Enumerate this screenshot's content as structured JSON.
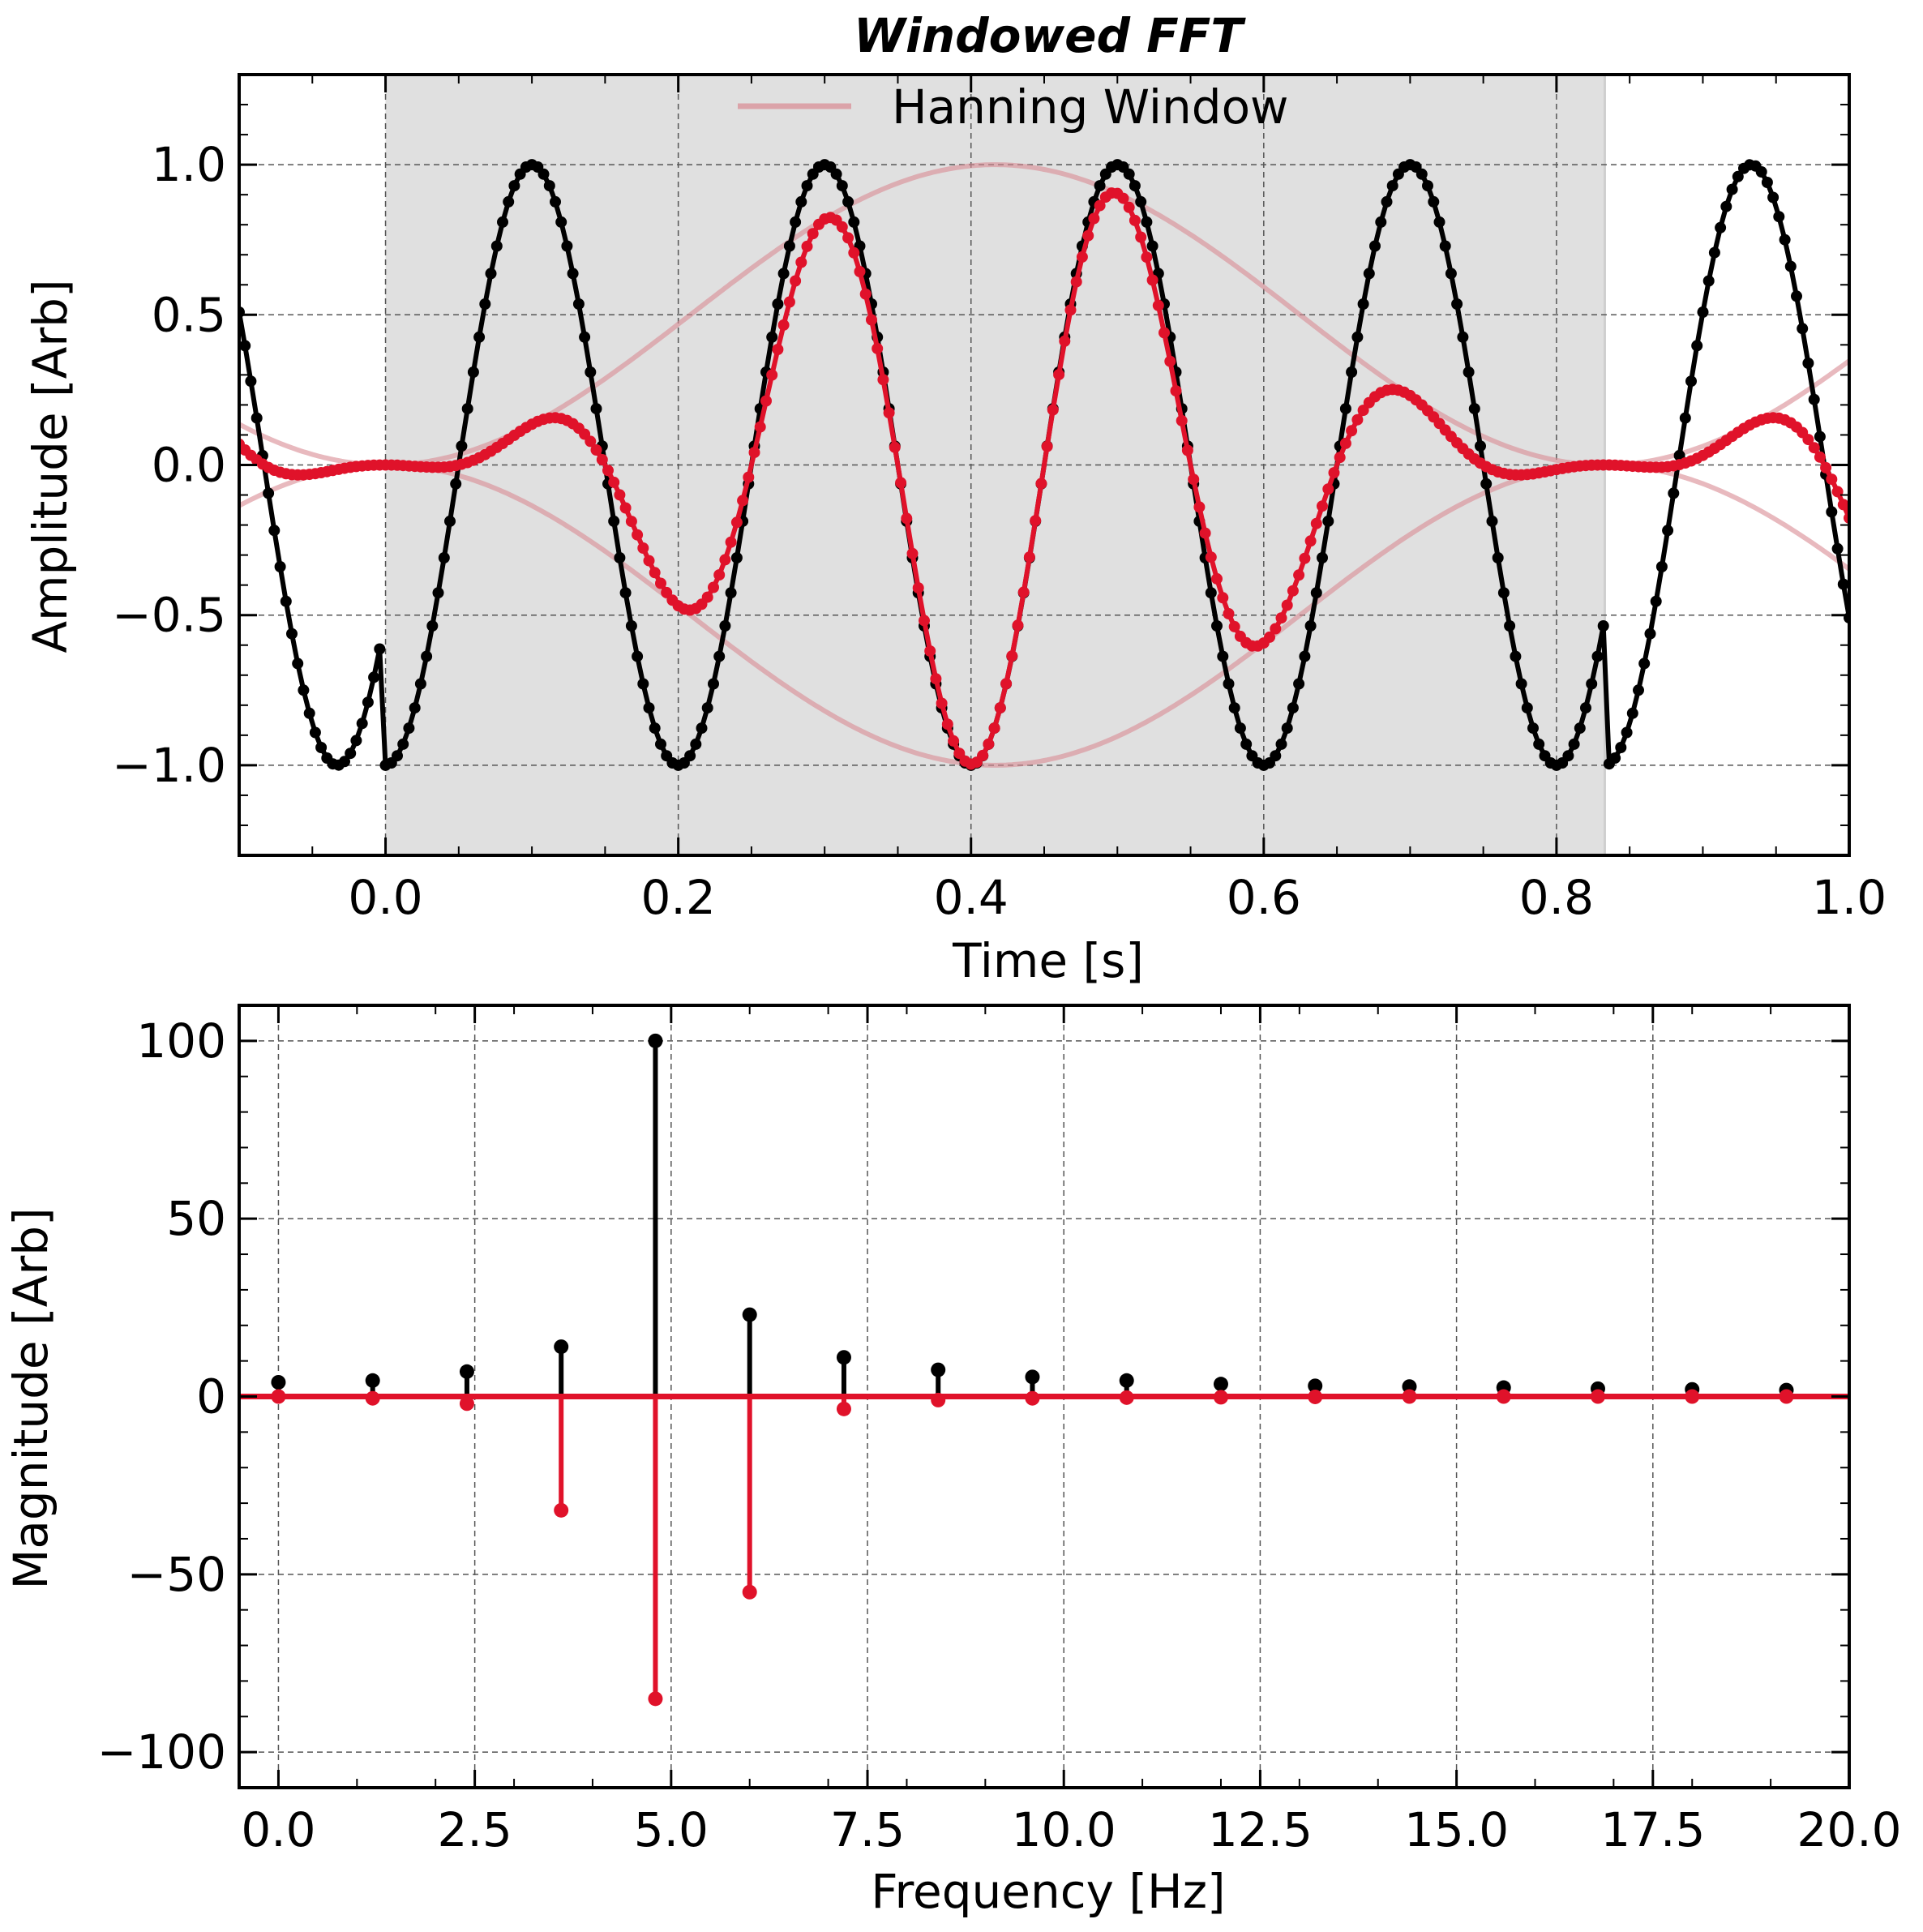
{
  "chart_data": [
    {
      "type": "line",
      "title": "Windowed FFT",
      "xlabel": "Time [s]",
      "ylabel": "Amplitude [Arb]",
      "xlim": [
        -0.1,
        1.0
      ],
      "ylim": [
        -1.3,
        1.3
      ],
      "xticks": [
        0.0,
        0.2,
        0.4,
        0.6,
        0.8,
        1.0
      ],
      "xtick_labels": [
        "0.0",
        "0.2",
        "0.4",
        "0.6",
        "0.8",
        "1.0"
      ],
      "yticks": [
        -1.0,
        -0.5,
        0.0,
        0.5,
        1.0
      ],
      "ytick_labels": [
        "−1.0",
        "−0.5",
        "0.0",
        "0.5",
        "1.0"
      ],
      "grid": true,
      "legend": {
        "placement": "upper-center",
        "entries": [
          "Hanning Window"
        ]
      },
      "window_region": [
        0.0,
        0.833
      ],
      "signal": {
        "frequency_hz": 5,
        "phase_offset_s": 0.1,
        "period_s": 0.833,
        "sample_step_s": 0.004
      },
      "series": [
        {
          "name": "",
          "role": "signal",
          "color": "#000000",
          "markers": true
        },
        {
          "name": "",
          "role": "windowed-signal",
          "color": "#e0122a",
          "markers": true
        },
        {
          "name": "Hanning Window",
          "role": "window",
          "color": "#d98a92"
        }
      ],
      "colors": {
        "signal": "#000000",
        "windowed": "#e0122a",
        "window": "#d98a92",
        "shade": "#e0e0e0"
      }
    },
    {
      "type": "stem",
      "xlabel": "Frequency [Hz]",
      "ylabel": "Magnitude [Arb]",
      "xlim": [
        -0.5,
        20.0
      ],
      "ylim": [
        -110,
        110
      ],
      "xticks": [
        0.0,
        2.5,
        5.0,
        7.5,
        10.0,
        12.5,
        15.0,
        17.5,
        20.0
      ],
      "xtick_labels": [
        "0.0",
        "2.5",
        "5.0",
        "7.5",
        "10.0",
        "12.5",
        "15.0",
        "17.5",
        "20.0"
      ],
      "yticks": [
        -100,
        -50,
        0,
        50,
        100
      ],
      "ytick_labels": [
        "−100",
        "−50",
        "0",
        "50",
        "100"
      ],
      "grid": true,
      "x": [
        0.0,
        1.2,
        2.4,
        3.6,
        4.8,
        6.0,
        7.2,
        8.4,
        9.6,
        10.8,
        12.0,
        13.2,
        14.4,
        15.6,
        16.8,
        18.0,
        19.2
      ],
      "series": [
        {
          "name": "",
          "color": "#000000",
          "values": [
            4,
            4.5,
            7,
            14,
            100,
            23,
            11,
            7.5,
            5.5,
            4.5,
            3.5,
            3,
            2.8,
            2.5,
            2.2,
            2,
            1.8
          ]
        },
        {
          "name": "",
          "color": "#e0122a",
          "values": [
            0,
            -0.5,
            -2,
            -32,
            -85,
            -55,
            -3.5,
            -1,
            -0.5,
            -0.3,
            -0.2,
            -0.1,
            0,
            0,
            0,
            0,
            0
          ]
        }
      ]
    }
  ]
}
